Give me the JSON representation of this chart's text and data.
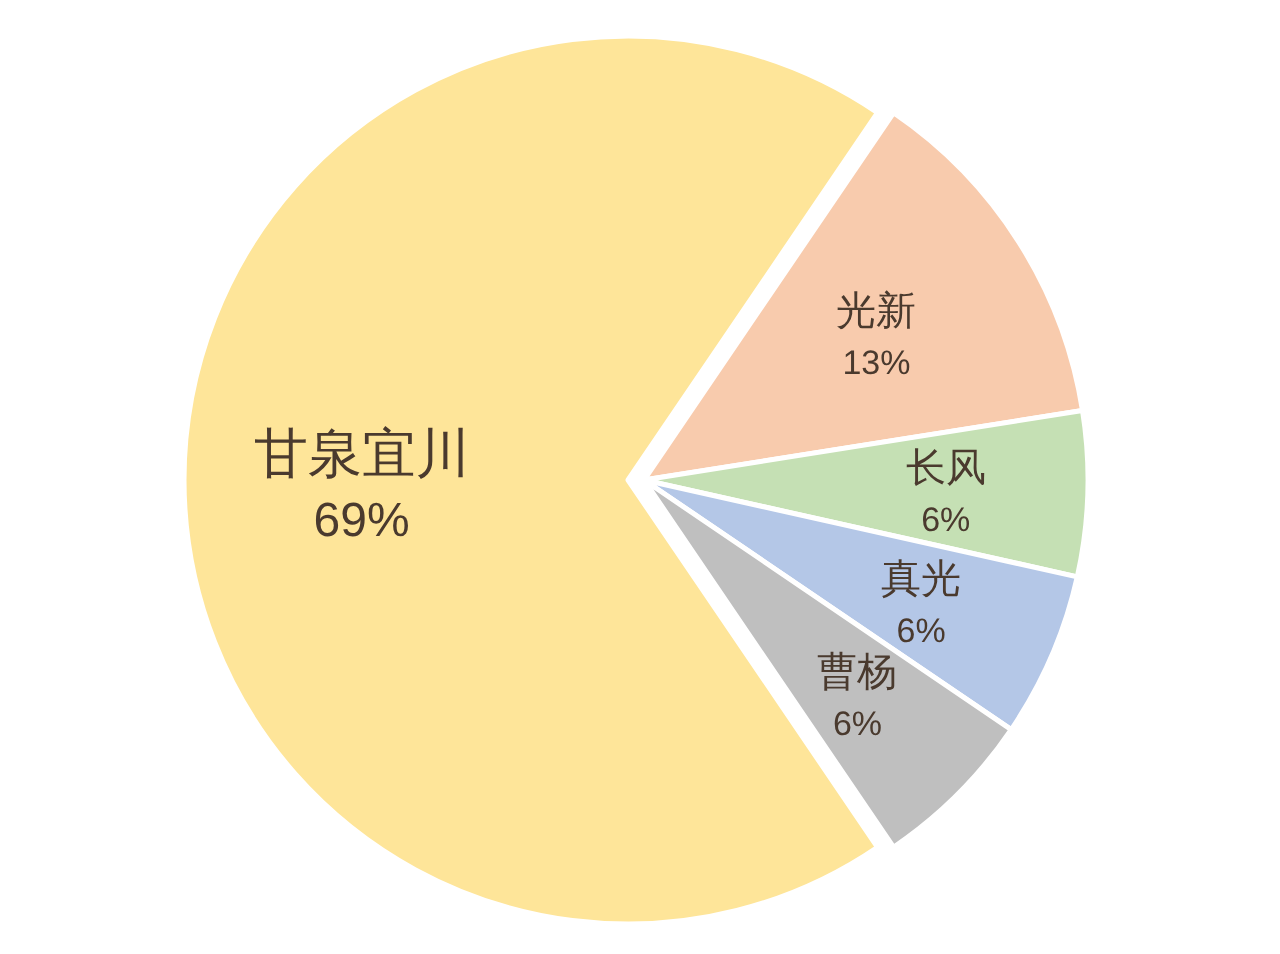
{
  "chart_data": {
    "type": "pie",
    "categories": [
      "光新",
      "长风",
      "真光",
      "曹杨",
      "甘泉宜川"
    ],
    "values": [
      13,
      6,
      6,
      6,
      69
    ],
    "colors": [
      "#f8cbad",
      "#c5e0b4",
      "#b4c7e7",
      "#bfbfbf",
      "#fee599"
    ],
    "value_labels": [
      "13%",
      "6%",
      "6%",
      "6%",
      "69%"
    ]
  }
}
